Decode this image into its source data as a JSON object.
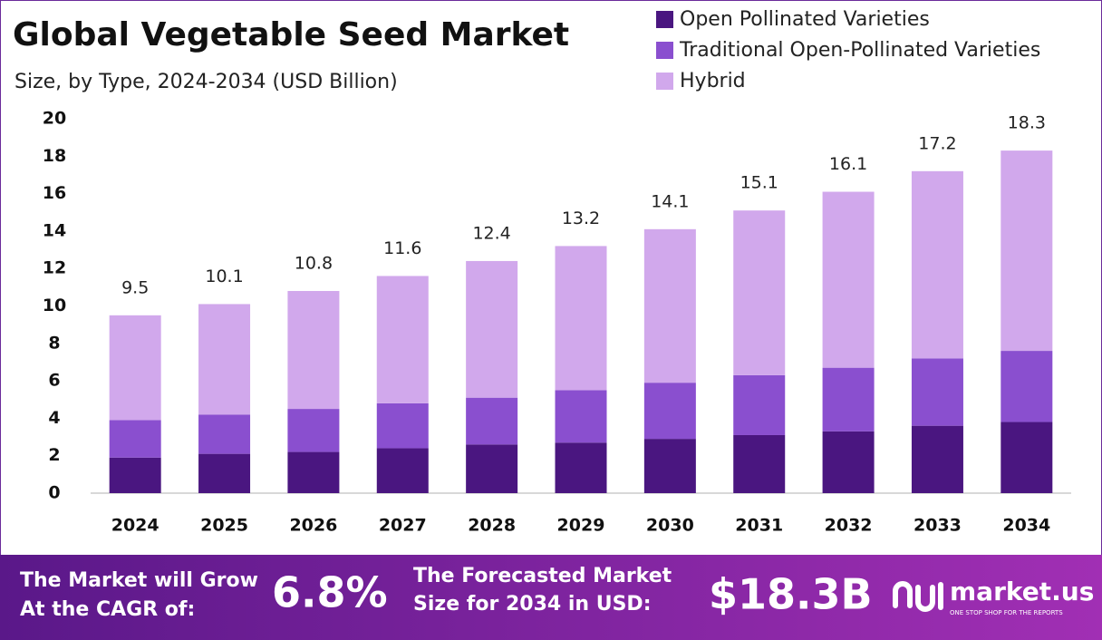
{
  "chart_data": {
    "type": "stacked_bar",
    "title": "Global Vegetable Seed Market",
    "subtitle": "Size, by Type, 2024-2034 (USD Billion)",
    "categories": [
      "2024",
      "2025",
      "2026",
      "2027",
      "2028",
      "2029",
      "2030",
      "2031",
      "2032",
      "2033",
      "2034"
    ],
    "series": [
      {
        "name": "Open Pollinated Varieties",
        "color": "#4a1680",
        "values": [
          1.9,
          2.1,
          2.2,
          2.4,
          2.6,
          2.7,
          2.9,
          3.1,
          3.3,
          3.6,
          3.8
        ]
      },
      {
        "name": "Traditional Open-Pollinated Varieties",
        "color": "#8a4fcf",
        "values": [
          2.0,
          2.1,
          2.3,
          2.4,
          2.5,
          2.8,
          3.0,
          3.2,
          3.4,
          3.6,
          3.8
        ]
      },
      {
        "name": "Hybrid",
        "color": "#d1a8ec",
        "values": [
          5.6,
          5.9,
          6.3,
          6.8,
          7.3,
          7.7,
          8.2,
          8.8,
          9.4,
          10.0,
          10.7
        ]
      }
    ],
    "totals": [
      9.5,
      10.1,
      10.8,
      11.6,
      12.4,
      13.2,
      14.1,
      15.1,
      16.1,
      17.2,
      18.3
    ],
    "ylim": [
      0,
      20
    ],
    "yticks": [
      0,
      2,
      4,
      6,
      8,
      10,
      12,
      14,
      16,
      18,
      20
    ],
    "grid": false
  },
  "banner": {
    "cagr_text": [
      "The Market will Grow",
      "At the CAGR of:"
    ],
    "cagr": "6.8%",
    "forecast_text": [
      "The Forecasted Market",
      "Size for 2034 in USD:"
    ],
    "forecast": "$18.3B",
    "logo": "market.us",
    "tagline": "ONE STOP SHOP FOR THE REPORTS"
  }
}
